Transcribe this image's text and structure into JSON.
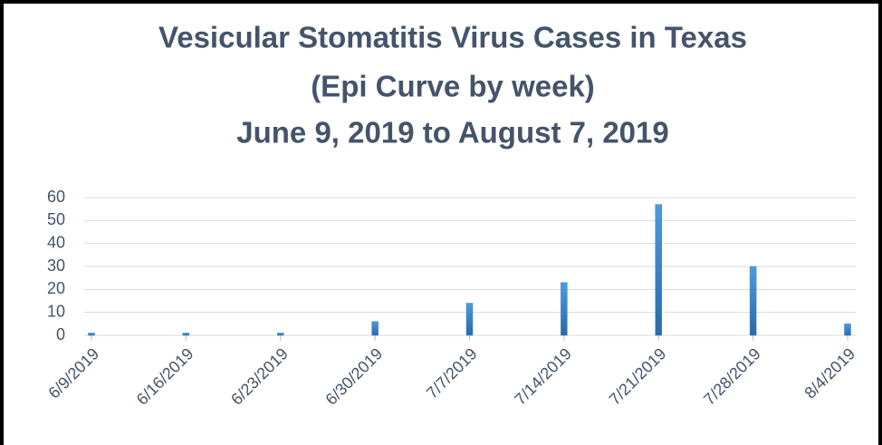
{
  "chart_data": {
    "type": "bar",
    "title": "Vesicular Stomatitis Virus Cases in Texas",
    "subtitle": [
      "(Epi Curve by week)",
      "June 9, 2019 to August 7, 2019"
    ],
    "categories": [
      "6/9/2019",
      "6/16/2019",
      "6/23/2019",
      "6/30/2019",
      "7/7/2019",
      "7/14/2019",
      "7/21/2019",
      "7/28/2019",
      "8/4/2019"
    ],
    "values": [
      1,
      1,
      1,
      6,
      14,
      23,
      57,
      30,
      5
    ],
    "color": "#3a87d1",
    "ylim": [
      0,
      60
    ],
    "yticks": [
      0,
      10,
      20,
      30,
      40,
      50,
      60
    ],
    "grid": true
  }
}
